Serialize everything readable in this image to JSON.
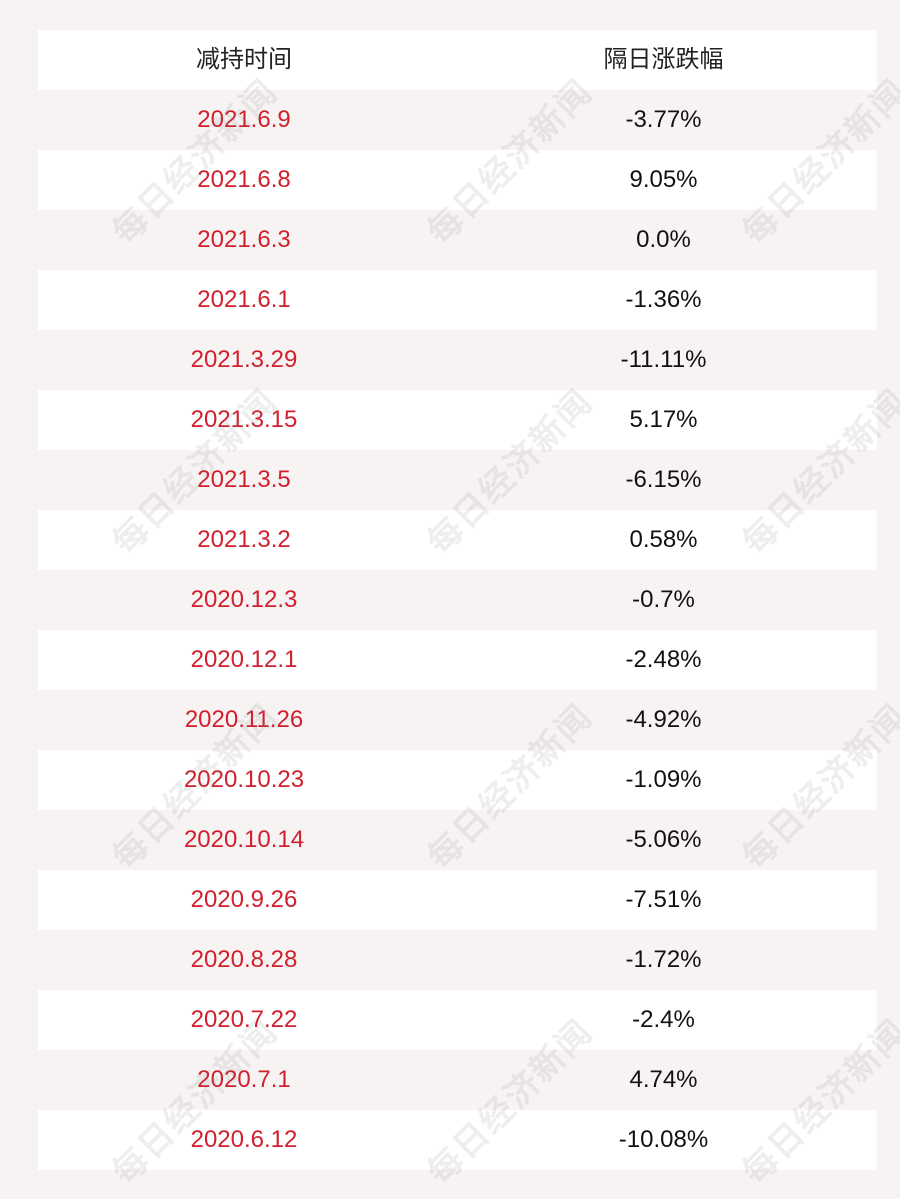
{
  "table": {
    "headers": {
      "date": "减持时间",
      "change": "隔日涨跌幅"
    },
    "rows": [
      {
        "date": "2021.6.9",
        "change": "-3.77%"
      },
      {
        "date": "2021.6.8",
        "change": "9.05%"
      },
      {
        "date": "2021.6.3",
        "change": "0.0%"
      },
      {
        "date": "2021.6.1",
        "change": "-1.36%"
      },
      {
        "date": "2021.3.29",
        "change": "-11.11%"
      },
      {
        "date": "2021.3.15",
        "change": "5.17%"
      },
      {
        "date": "2021.3.5",
        "change": "-6.15%"
      },
      {
        "date": "2021.3.2",
        "change": "0.58%"
      },
      {
        "date": "2020.12.3",
        "change": "-0.7%"
      },
      {
        "date": "2020.12.1",
        "change": "-2.48%"
      },
      {
        "date": "2020.11.26",
        "change": "-4.92%"
      },
      {
        "date": "2020.10.23",
        "change": "-1.09%"
      },
      {
        "date": "2020.10.14",
        "change": "-5.06%"
      },
      {
        "date": "2020.9.26",
        "change": "-7.51%"
      },
      {
        "date": "2020.8.28",
        "change": "-1.72%"
      },
      {
        "date": "2020.7.22",
        "change": "-2.4%"
      },
      {
        "date": "2020.7.1",
        "change": "4.74%"
      },
      {
        "date": "2020.6.12",
        "change": "-10.08%"
      }
    ]
  },
  "watermark": "每日经济新闻",
  "colors": {
    "date_text": "#d0202e",
    "value_text": "#111111",
    "row_white": "#ffffff",
    "row_tint": "#f7f3f3"
  }
}
